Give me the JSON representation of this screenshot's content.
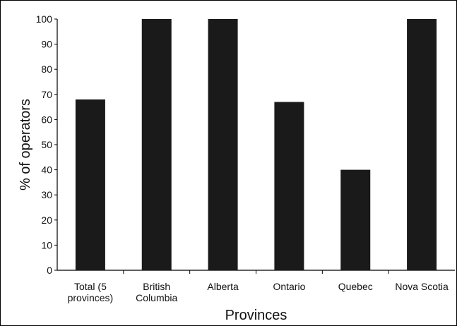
{
  "chart_data": {
    "type": "bar",
    "title": "",
    "xlabel": "Provinces",
    "ylabel": "% of operators",
    "categories": [
      [
        "Total (5",
        "provinces)"
      ],
      [
        "British",
        "Columbia"
      ],
      [
        "Alberta"
      ],
      [
        "Ontario"
      ],
      [
        "Quebec"
      ],
      [
        "Nova Scotia"
      ]
    ],
    "values": [
      68,
      100,
      100,
      67,
      40,
      100
    ],
    "ylim": [
      0,
      100
    ],
    "yticks": [
      0,
      10,
      20,
      30,
      40,
      50,
      60,
      70,
      80,
      90,
      100
    ],
    "grid": false,
    "legend": "none",
    "bar_color": "#1a1a1a",
    "axis_color": "#000000"
  }
}
